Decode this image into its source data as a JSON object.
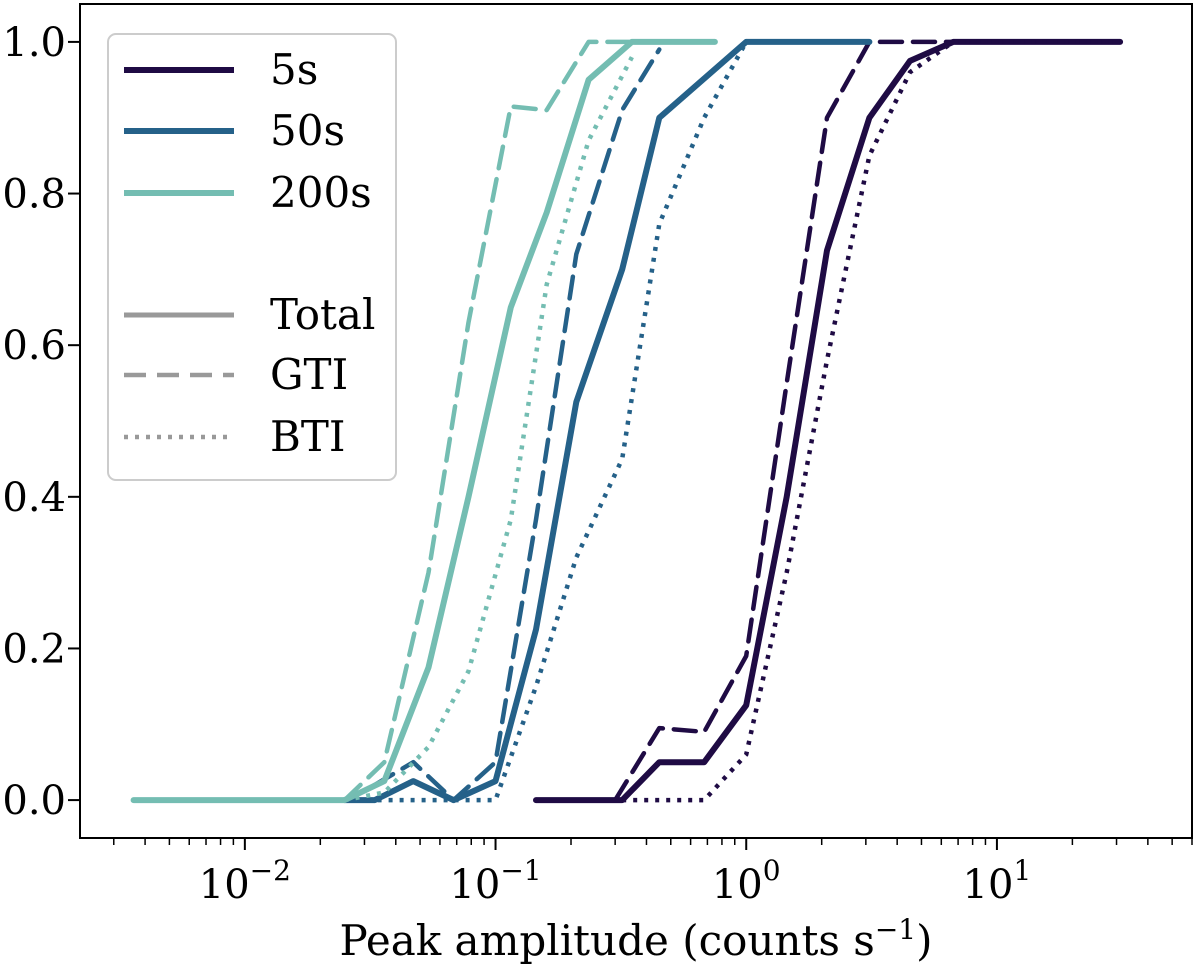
{
  "chart_data": {
    "type": "line",
    "xscale": "log",
    "title": "",
    "xlabel": "Peak amplitude (counts s",
    "xlabel_superscript": "−1",
    "xlabel_close": ")",
    "ylabel": "",
    "xlim": [
      0.0022,
      60
    ],
    "ylim": [
      -0.05,
      1.05
    ],
    "xticks": [
      {
        "value": 0.01,
        "base": "10",
        "exp": "−2"
      },
      {
        "value": 0.1,
        "base": "10",
        "exp": "−1"
      },
      {
        "value": 1,
        "base": "10",
        "exp": "0"
      },
      {
        "value": 10,
        "base": "10",
        "exp": "1"
      }
    ],
    "yticks": [
      {
        "value": 0.0,
        "label": "0.0"
      },
      {
        "value": 0.2,
        "label": "0.2"
      },
      {
        "value": 0.4,
        "label": "0.4"
      },
      {
        "value": 0.6,
        "label": "0.6"
      },
      {
        "value": 0.8,
        "label": "0.8"
      },
      {
        "value": 1.0,
        "label": "1.0"
      }
    ],
    "colors": {
      "5s": "#1f0b44",
      "50s": "#256189",
      "200s": "#74bdb2",
      "legend_style": "#999999"
    },
    "legend": {
      "placement": "top-left",
      "series": [
        {
          "label": "5s",
          "key": "5s"
        },
        {
          "label": "50s",
          "key": "50s"
        },
        {
          "label": "200s",
          "key": "200s"
        }
      ],
      "styles": [
        {
          "label": "Total",
          "style": "solid"
        },
        {
          "label": "GTI",
          "style": "dashed"
        },
        {
          "label": "BTI",
          "style": "dotted"
        }
      ]
    },
    "series": [
      {
        "name": "5s Total",
        "group": "5s",
        "style": "solid",
        "x": [
          0.145,
          0.32,
          0.45,
          0.68,
          1.0,
          1.45,
          2.1,
          3.1,
          4.5,
          6.7,
          31
        ],
        "y": [
          0.0,
          0.0,
          0.05,
          0.05,
          0.125,
          0.4,
          0.725,
          0.9,
          0.975,
          1.0,
          1.0
        ]
      },
      {
        "name": "5s GTI",
        "group": "5s",
        "style": "dashed",
        "x": [
          0.3,
          0.45,
          0.68,
          1.0,
          1.45,
          2.1,
          3.1,
          4.5,
          6.7,
          31
        ],
        "y": [
          0.0,
          0.095,
          0.09,
          0.19,
          0.55,
          0.9,
          1.0,
          1.0,
          1.0,
          1.0
        ]
      },
      {
        "name": "5s BTI",
        "group": "5s",
        "style": "dotted",
        "x": [
          0.32,
          0.68,
          1.0,
          1.45,
          2.1,
          3.1,
          4.5,
          6.7,
          31
        ],
        "y": [
          0.0,
          0.0,
          0.06,
          0.3,
          0.58,
          0.85,
          0.96,
          1.0,
          1.0
        ]
      },
      {
        "name": "50s Total",
        "group": "50s",
        "style": "solid",
        "x": [
          0.025,
          0.033,
          0.047,
          0.068,
          0.1,
          0.145,
          0.21,
          0.32,
          0.45,
          1.0,
          3.1
        ],
        "y": [
          0.0,
          0.0,
          0.025,
          0.0,
          0.025,
          0.225,
          0.525,
          0.7,
          0.9,
          1.0,
          1.0
        ]
      },
      {
        "name": "50s GTI",
        "group": "50s",
        "style": "dashed",
        "x": [
          0.025,
          0.033,
          0.047,
          0.068,
          0.1,
          0.145,
          0.21,
          0.32,
          0.45
        ],
        "y": [
          0.0,
          0.02,
          0.05,
          0.0,
          0.05,
          0.37,
          0.72,
          0.91,
          0.99
        ]
      },
      {
        "name": "50s BTI",
        "group": "50s",
        "style": "dotted",
        "x": [
          0.025,
          0.1,
          0.145,
          0.21,
          0.32,
          0.45,
          0.68,
          1.0
        ],
        "y": [
          0.0,
          0.0,
          0.15,
          0.32,
          0.45,
          0.76,
          0.9,
          1.0
        ]
      },
      {
        "name": "200s Total",
        "group": "200s",
        "style": "solid",
        "x": [
          0.0036,
          0.025,
          0.036,
          0.054,
          0.078,
          0.115,
          0.16,
          0.235,
          0.35,
          0.75
        ],
        "y": [
          0.0,
          0.0,
          0.025,
          0.175,
          0.4,
          0.65,
          0.775,
          0.95,
          1.0,
          1.0
        ]
      },
      {
        "name": "200s GTI",
        "group": "200s",
        "style": "dashed",
        "x": [
          0.025,
          0.036,
          0.054,
          0.078,
          0.115,
          0.16,
          0.235,
          0.35,
          0.75
        ],
        "y": [
          0.0,
          0.05,
          0.3,
          0.63,
          0.915,
          0.91,
          1.0,
          1.0,
          1.0
        ]
      },
      {
        "name": "200s BTI",
        "group": "200s",
        "style": "dotted",
        "x": [
          0.025,
          0.036,
          0.054,
          0.078,
          0.115,
          0.16,
          0.235,
          0.35
        ],
        "y": [
          0.0,
          0.01,
          0.07,
          0.17,
          0.37,
          0.68,
          0.87,
          0.98
        ]
      }
    ]
  }
}
